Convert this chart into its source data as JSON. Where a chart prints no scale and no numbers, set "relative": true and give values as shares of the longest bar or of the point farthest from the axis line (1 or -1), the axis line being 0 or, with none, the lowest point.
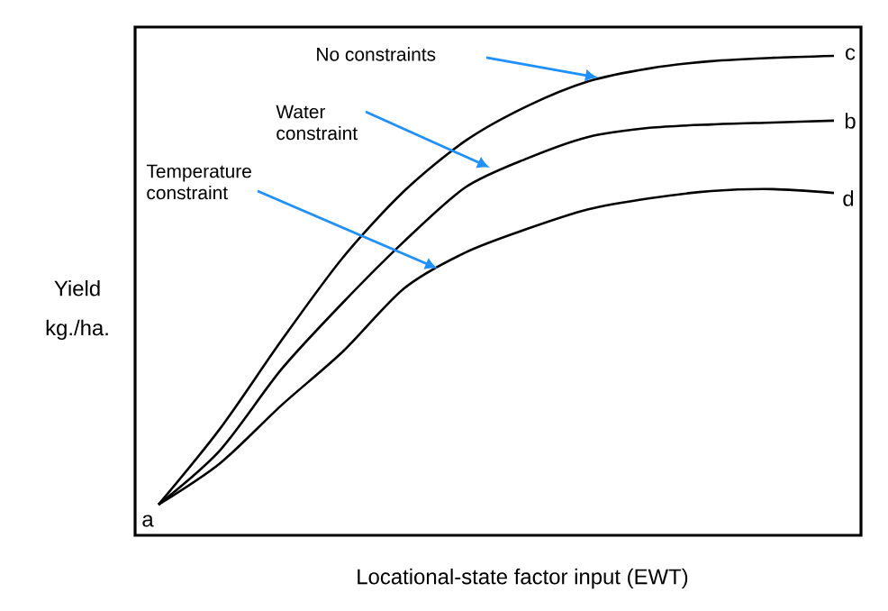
{
  "chart_data": {
    "type": "line",
    "relative": true,
    "tick_labels": false,
    "xlabel": "Locational-state factor input  (EWT)",
    "ylabel": "Yield kg./ha.",
    "categories": [
      null,
      null,
      null,
      null,
      null,
      null,
      null,
      null,
      null,
      null,
      null,
      null
    ],
    "series": [
      {
        "color": "#000000",
        "values": [
          0.064,
          0.222,
          0.406,
          0.579,
          0.718,
          0.823,
          0.895,
          0.947,
          0.974,
          0.989,
          0.996,
          1
        ]
      },
      {
        "color": "#000000",
        "values": [
          0.064,
          0.177,
          0.346,
          0.485,
          0.613,
          0.726,
          0.786,
          0.831,
          0.85,
          0.857,
          0.861,
          0.865
        ]
      },
      {
        "color": "#000000",
        "values": [
          0.064,
          0.15,
          0.271,
          0.383,
          0.515,
          0.59,
          0.639,
          0.68,
          0.703,
          0.718,
          0.722,
          0.714
        ]
      }
    ],
    "annotations": [
      "No constraints",
      "Water constraint",
      "Temperature constraint",
      "a",
      "c",
      "b",
      "d"
    ]
  }
}
